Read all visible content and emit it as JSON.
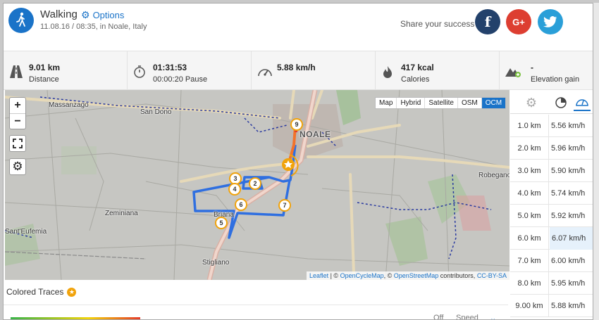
{
  "activity": {
    "title": "Walking",
    "options_label": "Options",
    "subtitle": "11.08.16 / 08:35, in Noale, Italy"
  },
  "share": {
    "label": "Share your success",
    "facebook": "f",
    "google": "G+",
    "twitter": "twitter-bird"
  },
  "stats": [
    {
      "value": "9.01 km",
      "label": "Distance",
      "icon": "road-icon"
    },
    {
      "value": "01:31:53",
      "label": "00:00:20 Pause",
      "icon": "stopwatch-icon"
    },
    {
      "value": "5.88 km/h",
      "label": "",
      "icon": "speedometer-icon"
    },
    {
      "value": "417 kcal",
      "label": "Calories",
      "icon": "flame-icon"
    },
    {
      "value": "-",
      "label": "Elevation gain",
      "icon": "mountain-icon"
    }
  ],
  "map": {
    "zoom_in": "+",
    "zoom_out": "−",
    "layers": [
      "Map",
      "Hybrid",
      "Satellite",
      "OSM",
      "OCM"
    ],
    "active_layer": "OCM",
    "attribution": {
      "leaflet": "Leaflet",
      "sep1": " | © ",
      "ocm": "OpenCycleMap",
      "sep2": ", © ",
      "osm": "OpenStreetMap",
      "sep3": " contributors, ",
      "license": "CC-BY-SA"
    },
    "places": [
      "Massanzago",
      "San Dono",
      "NOALE",
      "Robegano",
      "Zeminiana",
      "Sant'Eufemia",
      "Stigliano",
      "Briana"
    ],
    "markers": [
      "9",
      "3",
      "2",
      "4",
      "6",
      "7",
      "5"
    ]
  },
  "splits": [
    {
      "km": "1.0 km",
      "speed": "5.56 km/h"
    },
    {
      "km": "2.0 km",
      "speed": "5.96 km/h"
    },
    {
      "km": "3.0 km",
      "speed": "5.90 km/h"
    },
    {
      "km": "4.0 km",
      "speed": "5.74 km/h"
    },
    {
      "km": "5.0 km",
      "speed": "5.92 km/h"
    },
    {
      "km": "6.0 km",
      "speed": "6.07 km/h"
    },
    {
      "km": "7.0 km",
      "speed": "6.00 km/h"
    },
    {
      "km": "8.0 km",
      "speed": "5.95 km/h"
    },
    {
      "km": "9.00 km",
      "speed": "5.88 km/h"
    }
  ],
  "colored_traces": {
    "label": "Colored Traces",
    "off_label": "Off",
    "speed_label": "Speed"
  },
  "colors": {
    "accent": "#1a73c8",
    "route": "#2f6fe0",
    "marker": "#f1a30b",
    "facebook": "#23416b",
    "google": "#dd3e31",
    "twitter": "#2a9fd8"
  }
}
